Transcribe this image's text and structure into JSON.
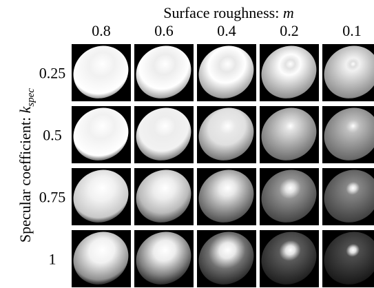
{
  "header": {
    "title": "Surface roughness:",
    "title_symbol": "m"
  },
  "columns": [
    "0.8",
    "0.6",
    "0.4",
    "0.2",
    "0.1"
  ],
  "row_header": {
    "title": "Specular coefficient:",
    "symbol": "k",
    "symbol_subscript": "spec"
  },
  "rows": [
    "0.25",
    "0.5",
    "0.75",
    "1"
  ]
}
